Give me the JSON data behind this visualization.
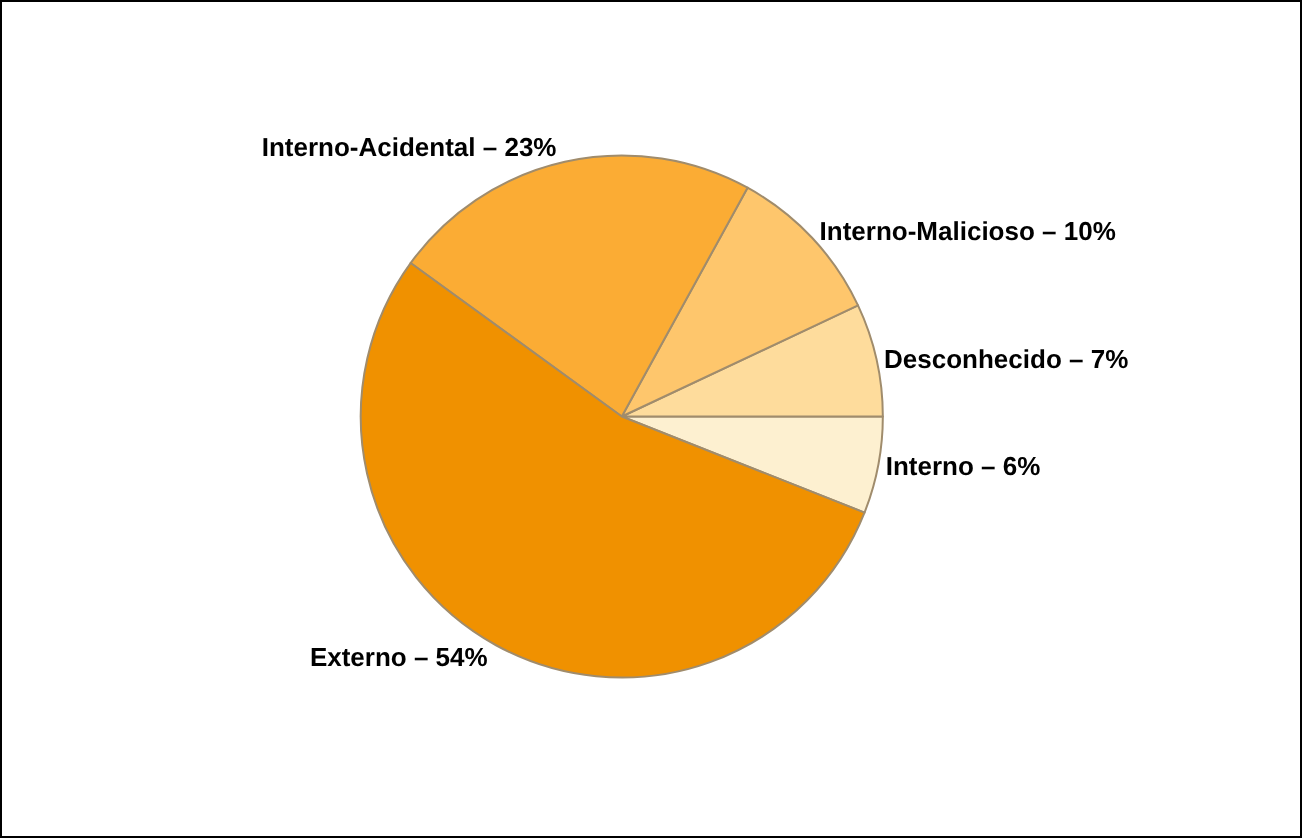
{
  "chart_data": {
    "type": "pie",
    "categories": [
      "Interno",
      "Desconhecido",
      "Interno-Malicioso",
      "Interno-Acidental",
      "Externo"
    ],
    "values": [
      6,
      7,
      10,
      23,
      54
    ],
    "value_labels": [
      "6%",
      "7%",
      "10%",
      "23%",
      "54%"
    ],
    "colors": [
      "#fdf0d0",
      "#fedc9c",
      "#fec66c",
      "#fbac34",
      "#f09100"
    ],
    "legend": false
  }
}
